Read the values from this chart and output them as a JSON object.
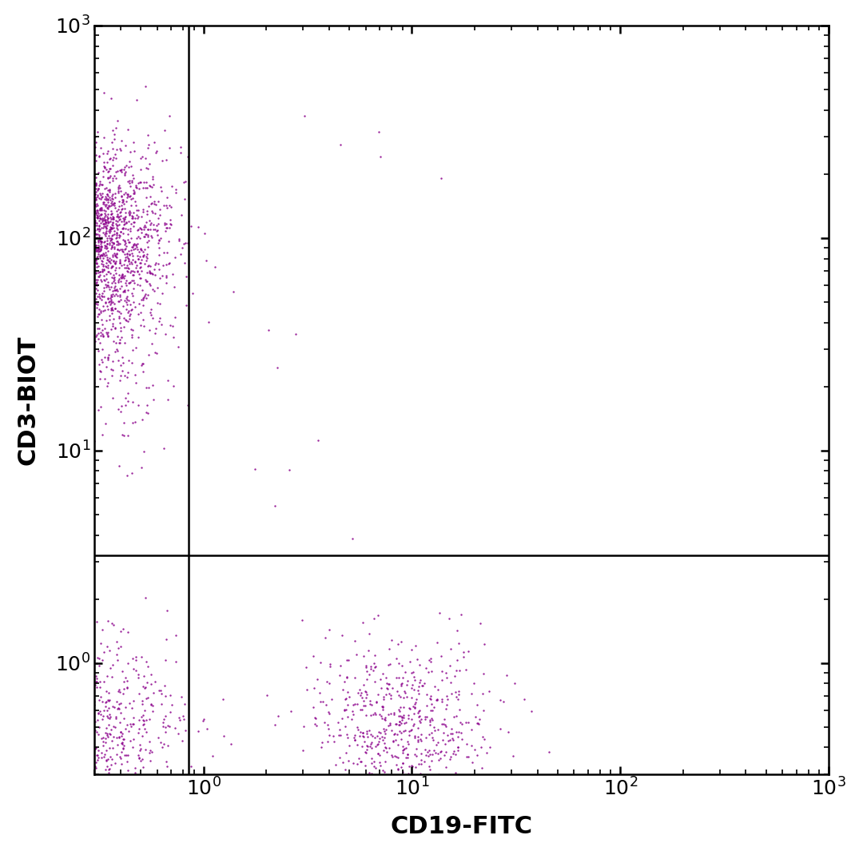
{
  "xlabel": "CD19-FITC",
  "ylabel": "CD3-BIOT",
  "dot_color": "#8B008B",
  "background_color": "#ffffff",
  "xlim": [
    0.3,
    1000
  ],
  "ylim": [
    0.3,
    1000
  ],
  "gate_x": 0.85,
  "gate_y": 3.2,
  "xlabel_fontsize": 22,
  "ylabel_fontsize": 22,
  "tick_fontsize": 18,
  "dot_size": 3,
  "dot_alpha": 0.85,
  "clusters": {
    "CD3pos_CD19neg": {
      "n": 2200,
      "x_log_mean": -0.55,
      "x_log_std": 0.18,
      "y_log_mean": 2.0,
      "y_log_std": 0.22
    },
    "CD3pos_CD19neg_tail": {
      "n": 400,
      "x_log_mean": -0.55,
      "x_log_std": 0.22,
      "y_log_mean": 1.55,
      "y_log_std": 0.3
    },
    "CD3neg_CD19neg": {
      "n": 800,
      "x_log_mean": -0.55,
      "x_log_std": 0.22,
      "y_log_mean": -0.28,
      "y_log_std": 0.2
    },
    "CD3neg_CD19pos": {
      "n": 600,
      "x_log_mean": 0.95,
      "x_log_std": 0.2,
      "y_log_mean": -0.28,
      "y_log_std": 0.18
    },
    "scatter_sparse_upper": {
      "n": 15,
      "x_log_mean": 0.5,
      "x_log_std": 0.5,
      "y_log_mean": 1.5,
      "y_log_std": 0.8
    },
    "one_high_dot": {
      "n": 3,
      "x_log_mean": 0.7,
      "x_log_std": 0.1,
      "y_log_mean": 2.4,
      "y_log_std": 0.05
    }
  }
}
